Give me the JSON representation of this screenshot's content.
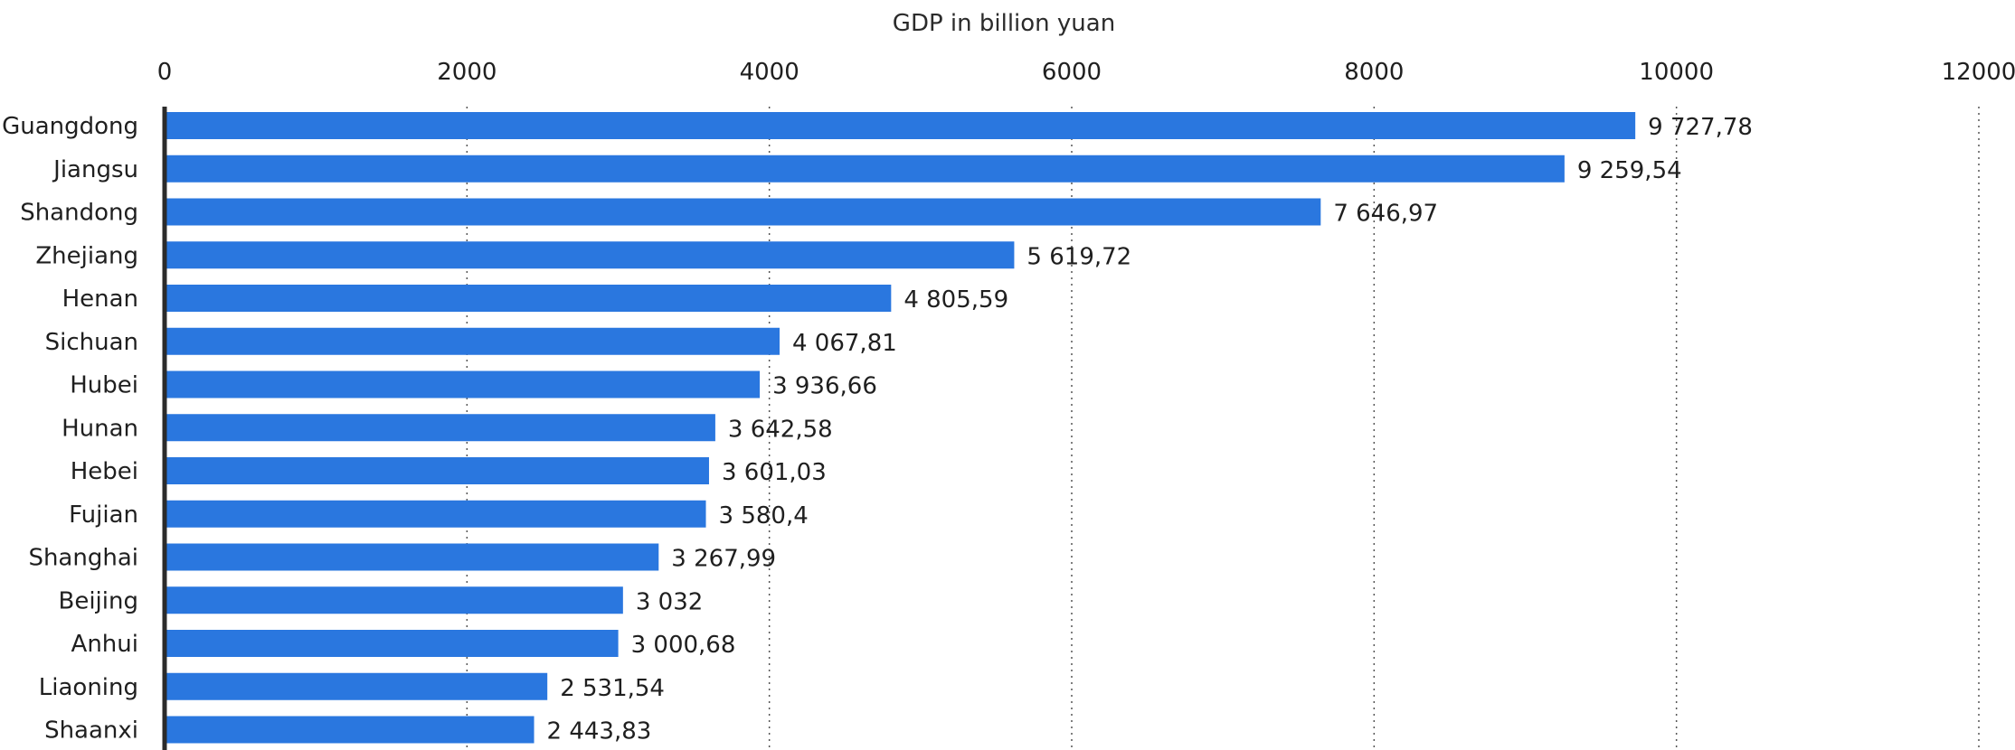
{
  "chart_data": {
    "type": "bar",
    "orientation": "horizontal",
    "xlabel": "GDP in billion yuan",
    "xlim": [
      0,
      12000
    ],
    "xticks": [
      0,
      2000,
      4000,
      6000,
      8000,
      10000,
      12000
    ],
    "tick_labels": [
      "0",
      "2000",
      "4000",
      "6000",
      "8000",
      "10000",
      "12000"
    ],
    "x_axis_position": "top",
    "grid": true,
    "bar_color": "#2a77df",
    "categories": [
      "Guangdong",
      "Jiangsu",
      "Shandong",
      "Zhejiang",
      "Henan",
      "Sichuan",
      "Hubei",
      "Hunan",
      "Hebei",
      "Fujian",
      "Shanghai",
      "Beijing",
      "Anhui",
      "Liaoning",
      "Shaanxi"
    ],
    "values": [
      9727.78,
      9259.54,
      7646.97,
      5619.72,
      4805.59,
      4067.81,
      3936.66,
      3642.58,
      3601.03,
      3580.4,
      3267.99,
      3032,
      3000.68,
      2531.54,
      2443.83
    ],
    "value_labels": [
      "9 727,78",
      "9 259,54",
      "7 646,97",
      "5 619,72",
      "4 805,59",
      "4 067,81",
      "3 936,66",
      "3 642,58",
      "3 601,03",
      "3 580,4",
      "3 267,99",
      "3 032",
      "3 000,68",
      "2 531,54",
      "2 443,83"
    ]
  }
}
